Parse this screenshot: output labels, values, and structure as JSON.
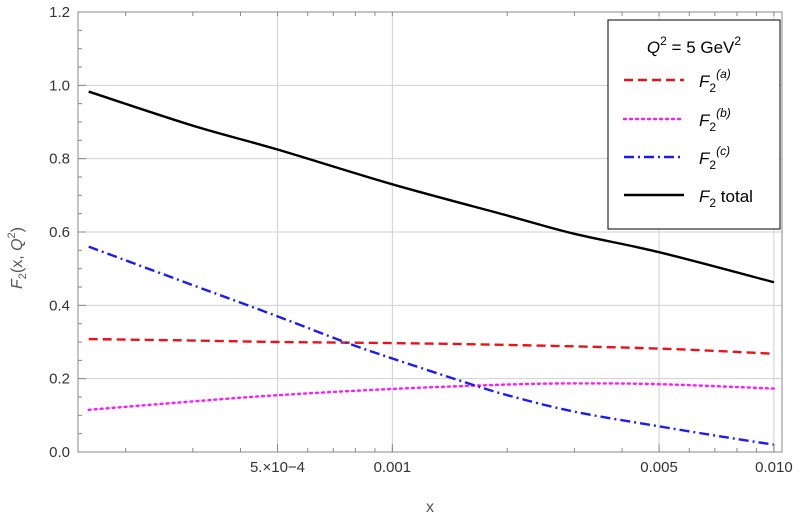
{
  "chart_data": {
    "type": "line",
    "title": "",
    "xlabel": "x",
    "ylabel": "F2(x,Q2)",
    "x_scale": "log",
    "xlim": [
      0.00015,
      0.0105
    ],
    "ylim": [
      0.0,
      1.2
    ],
    "grid": true,
    "x_ticks": [
      {
        "value": 0.0005,
        "label": "5.×10−4"
      },
      {
        "value": 0.001,
        "label": "0.001"
      },
      {
        "value": 0.005,
        "label": "0.005"
      },
      {
        "value": 0.01,
        "label": "0.010"
      }
    ],
    "y_ticks": [
      {
        "value": 0.0,
        "label": "0.0"
      },
      {
        "value": 0.2,
        "label": "0.2"
      },
      {
        "value": 0.4,
        "label": "0.4"
      },
      {
        "value": 0.6,
        "label": "0.6"
      },
      {
        "value": 0.8,
        "label": "0.8"
      },
      {
        "value": 1.0,
        "label": "1.0"
      },
      {
        "value": 1.2,
        "label": "1.2"
      }
    ],
    "legend": {
      "position": "top-right",
      "header": "Q2 = 5 GeV2"
    },
    "series": [
      {
        "name": "F2(a)",
        "color": "#e8121c",
        "style": "dashed",
        "x": [
          0.00016,
          0.0003,
          0.0005,
          0.001,
          0.002,
          0.005,
          0.01
        ],
        "y": [
          0.308,
          0.304,
          0.3,
          0.297,
          0.292,
          0.282,
          0.268
        ]
      },
      {
        "name": "F2(b)",
        "color": "#ff19ff",
        "style": "dotted",
        "x": [
          0.00016,
          0.0003,
          0.0005,
          0.001,
          0.002,
          0.003,
          0.005,
          0.01
        ],
        "y": [
          0.115,
          0.138,
          0.155,
          0.172,
          0.184,
          0.187,
          0.185,
          0.173
        ]
      },
      {
        "name": "F2(c)",
        "color": "#1c1cf0",
        "style": "dashdot",
        "x": [
          0.00016,
          0.0003,
          0.0005,
          0.00075,
          0.001,
          0.0015,
          0.002,
          0.003,
          0.005,
          0.0075,
          0.01
        ],
        "y": [
          0.56,
          0.455,
          0.37,
          0.3,
          0.255,
          0.195,
          0.155,
          0.11,
          0.07,
          0.04,
          0.02
        ]
      },
      {
        "name": "F2 total",
        "color": "#000000",
        "style": "solid",
        "x": [
          0.00016,
          0.0003,
          0.0005,
          0.001,
          0.002,
          0.003,
          0.005,
          0.01
        ],
        "y": [
          0.983,
          0.89,
          0.825,
          0.73,
          0.645,
          0.595,
          0.545,
          0.463
        ]
      }
    ]
  }
}
